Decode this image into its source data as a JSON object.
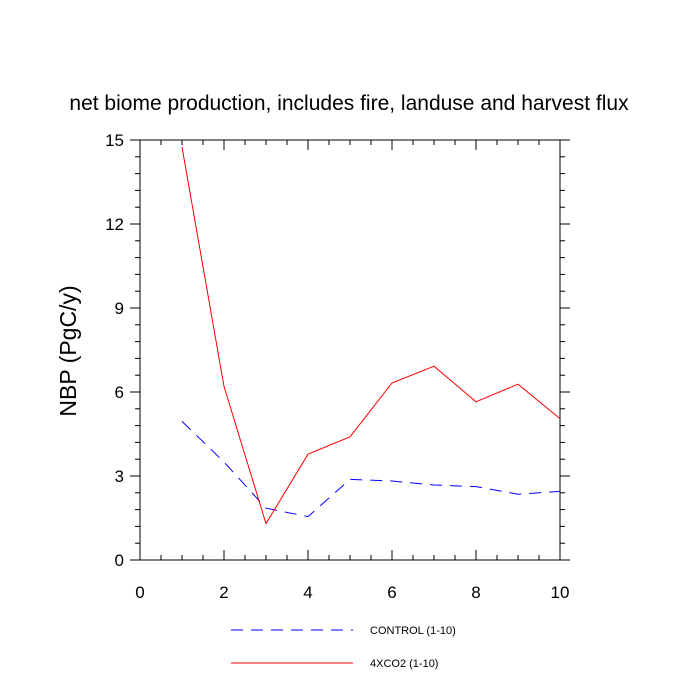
{
  "chart_data": {
    "type": "line",
    "title": "net biome production, includes fire, landuse and harvest flux",
    "ylabel": "NBP  (PgC/y)",
    "xlabel": "",
    "xlim": [
      0,
      10
    ],
    "ylim": [
      0,
      15
    ],
    "xticks": [
      0,
      2,
      4,
      6,
      8,
      10
    ],
    "yticks": [
      0,
      3,
      6,
      9,
      12,
      15
    ],
    "grid": false,
    "legend_position": "bottom",
    "series": [
      {
        "name": "CONTROL (1-10)",
        "color": "#0000ff",
        "dash": "dashed",
        "x": [
          1,
          2,
          3,
          4,
          5,
          6,
          7,
          8,
          9,
          10
        ],
        "y": [
          4.95,
          3.5,
          1.85,
          1.55,
          2.88,
          2.82,
          2.68,
          2.62,
          2.35,
          2.45
        ]
      },
      {
        "name": "4XCO2 (1-10)",
        "color": "#ff0000",
        "dash": "solid",
        "x": [
          1,
          2,
          3,
          4,
          5,
          6,
          7,
          8,
          9,
          10
        ],
        "y": [
          14.75,
          6.2,
          1.3,
          3.78,
          4.4,
          6.32,
          6.92,
          5.65,
          6.28,
          5.05
        ]
      }
    ]
  }
}
